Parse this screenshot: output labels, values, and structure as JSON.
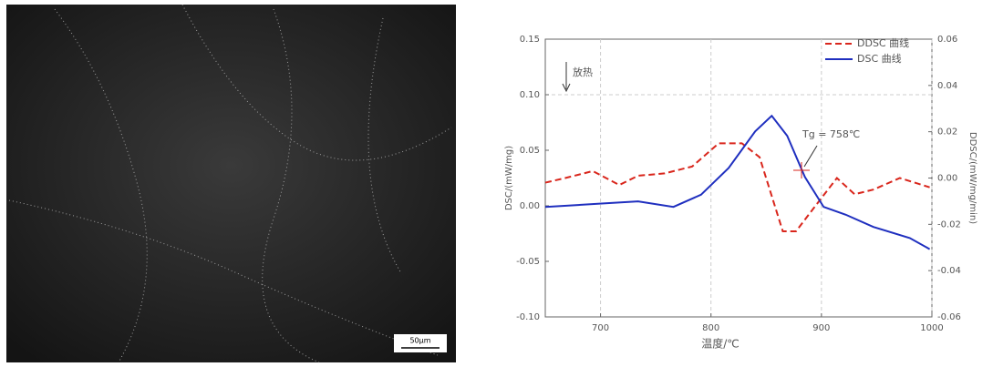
{
  "micrograph": {
    "scale_bar": "50μm"
  },
  "chart_data": {
    "type": "line",
    "x_label": "温度/℃",
    "y_label": "DSC/(mW/mg)",
    "y2_label": "DDSC/(mW/mg/min)",
    "annotations": [
      "放热",
      "Tg = 758℃"
    ],
    "xlim": [
      650,
      1000
    ],
    "xticks": [
      700,
      800,
      900,
      1000
    ],
    "ylim": [
      -0.1,
      0.15
    ],
    "yticks": [
      {
        "value": 0.15,
        "label": "0.15"
      },
      {
        "value": 0.1,
        "label": "0.10"
      },
      {
        "value": 0.05,
        "label": "0.05"
      },
      {
        "value": 0,
        "label": "0.00"
      },
      {
        "value": -0.05,
        "label": "-0.05"
      },
      {
        "value": -0.1,
        "label": "-0.10"
      }
    ],
    "y2lim": [
      -0.06,
      0.06
    ],
    "y2ticks": [
      {
        "value": 0.06,
        "label": "0.06"
      },
      {
        "value": 0.04,
        "label": "0.04"
      },
      {
        "value": 0.02,
        "label": "0.02"
      },
      {
        "value": 0,
        "label": "0.00"
      },
      {
        "value": -0.02,
        "label": "-0.02"
      },
      {
        "value": -0.04,
        "label": "-0.04"
      },
      {
        "value": -0.06,
        "label": "-0.06"
      }
    ],
    "grid": true,
    "legend": "upper right",
    "series": [
      {
        "name": "DDSC 曲线",
        "color": "#d9261c",
        "dash": true,
        "axis": "y2",
        "x": [
          650,
          668,
          693,
          717,
          734,
          758,
          783,
          807,
          828,
          844,
          865,
          877,
          893,
          914,
          930,
          947,
          971,
          998
        ],
        "values": [
          -0.002,
          0.0,
          0.003,
          -0.003,
          0.001,
          0.002,
          0.005,
          0.015,
          0.015,
          0.009,
          -0.023,
          -0.023,
          -0.013,
          0.0,
          -0.007,
          -0.005,
          0.0,
          -0.004
        ]
      },
      {
        "name": "DSC 曲线",
        "color": "#1f2fbf",
        "dash": false,
        "x": [
          650,
          701,
          734,
          766,
          791,
          816,
          840,
          855,
          869,
          885,
          902,
          922,
          947,
          980,
          998
        ],
        "values": [
          -0.001,
          0.002,
          0.004,
          -0.001,
          0.01,
          0.034,
          0.067,
          0.081,
          0.063,
          0.026,
          -0.001,
          -0.008,
          -0.019,
          -0.029,
          -0.039
        ]
      }
    ]
  }
}
